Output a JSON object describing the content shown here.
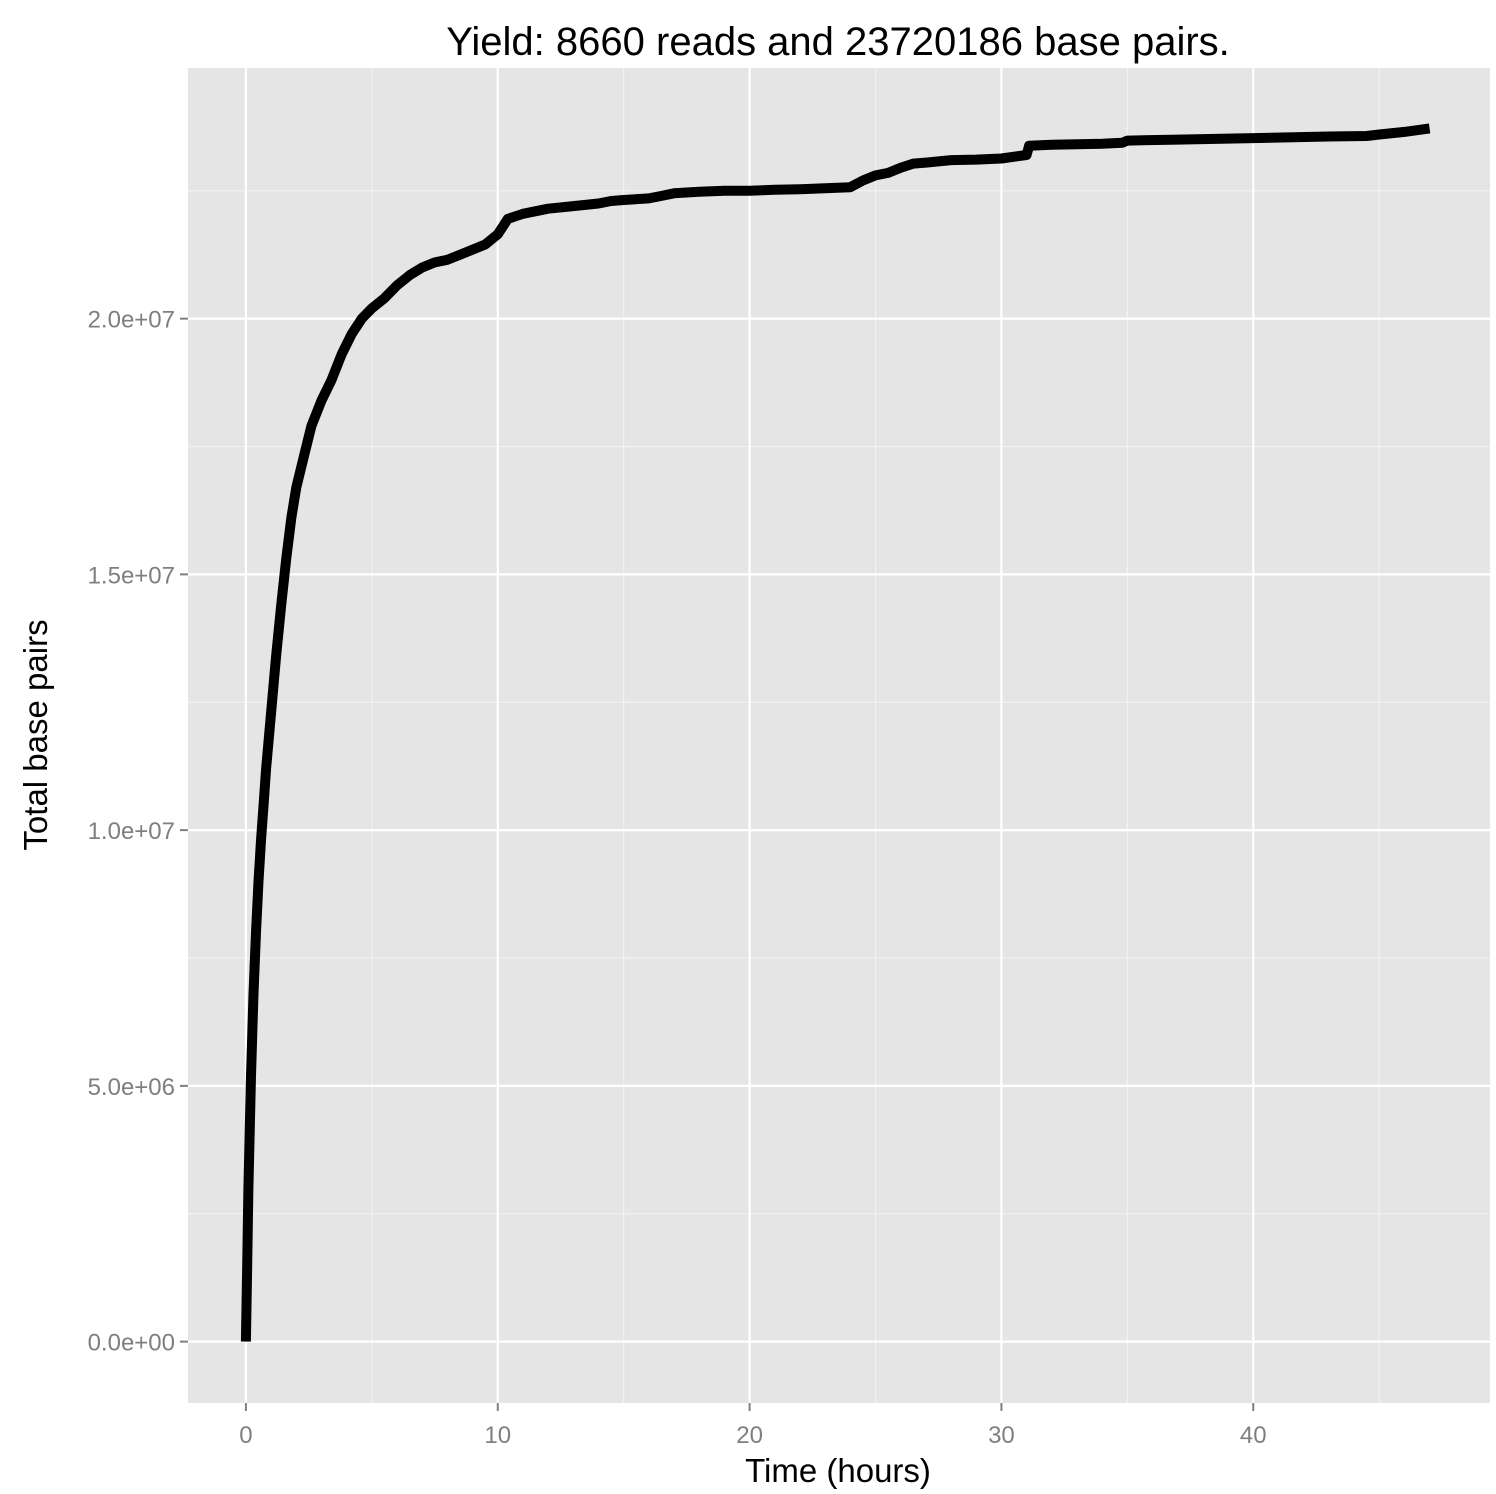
{
  "chart_data": {
    "type": "line",
    "title": "Yield: 8660 reads and 23720186 base pairs.",
    "xlabel": "Time (hours)",
    "ylabel": "Total base pairs",
    "xlim": [
      -2.3,
      49.4
    ],
    "ylim": [
      -1200000,
      24900000
    ],
    "x_ticks": [
      0,
      10,
      20,
      30,
      40
    ],
    "x_tick_labels": [
      "0",
      "10",
      "20",
      "30",
      "40"
    ],
    "y_ticks": [
      0,
      5000000,
      10000000,
      15000000,
      20000000
    ],
    "y_tick_labels": [
      "0.0e+00",
      "5.0e+06",
      "1.0e+07",
      "1.5e+07",
      "2.0e+07"
    ],
    "grid": true,
    "legend": "none",
    "colors": {
      "panel": "#e5e5e5",
      "grid_major": "#ffffff",
      "grid_minor": "#f2f2f2",
      "line": "#000000"
    },
    "series": [
      {
        "x": [
          0,
          0.05,
          0.1,
          0.2,
          0.3,
          0.4,
          0.5,
          0.6,
          0.7,
          0.8,
          1.0,
          1.2,
          1.4,
          1.6,
          1.8,
          2.0,
          2.3,
          2.6,
          3.0,
          3.4,
          3.8,
          4.2,
          4.6,
          5.0,
          5.5,
          6.0,
          6.5,
          7.0,
          7.5,
          8.0,
          8.5,
          9.0,
          9.5,
          10.0,
          10.2,
          10.4,
          11.0,
          12.0,
          13.0,
          14.0,
          14.5,
          15.0,
          16.0,
          16.5,
          17.0,
          18.0,
          19.0,
          20.0,
          21.0,
          22.0,
          23.0,
          24.0,
          24.5,
          25.0,
          25.5,
          26.0,
          26.5,
          27.0,
          28.0,
          29.0,
          30.0,
          31.0,
          31.1,
          32.0,
          34.0,
          34.8,
          35.0,
          37.0,
          40.0,
          43.0,
          44.5,
          45.0,
          46.0,
          47.0
        ],
        "y": [
          0,
          1500000,
          3000000,
          5200000,
          6800000,
          8000000,
          9000000,
          9800000,
          10500000,
          11200000,
          12300000,
          13400000,
          14400000,
          15300000,
          16100000,
          16700000,
          17300000,
          17900000,
          18400000,
          18800000,
          19300000,
          19700000,
          20000000,
          20200000,
          20400000,
          20650000,
          20850000,
          21000000,
          21100000,
          21150000,
          21250000,
          21350000,
          21450000,
          21650000,
          21800000,
          21950000,
          22050000,
          22150000,
          22200000,
          22250000,
          22300000,
          22320000,
          22350000,
          22400000,
          22450000,
          22480000,
          22500000,
          22500000,
          22520000,
          22530000,
          22550000,
          22570000,
          22700000,
          22800000,
          22850000,
          22950000,
          23030000,
          23050000,
          23100000,
          23110000,
          23130000,
          23200000,
          23380000,
          23400000,
          23420000,
          23440000,
          23480000,
          23500000,
          23530000,
          23560000,
          23570000,
          23600000,
          23650000,
          23720000
        ]
      }
    ]
  }
}
